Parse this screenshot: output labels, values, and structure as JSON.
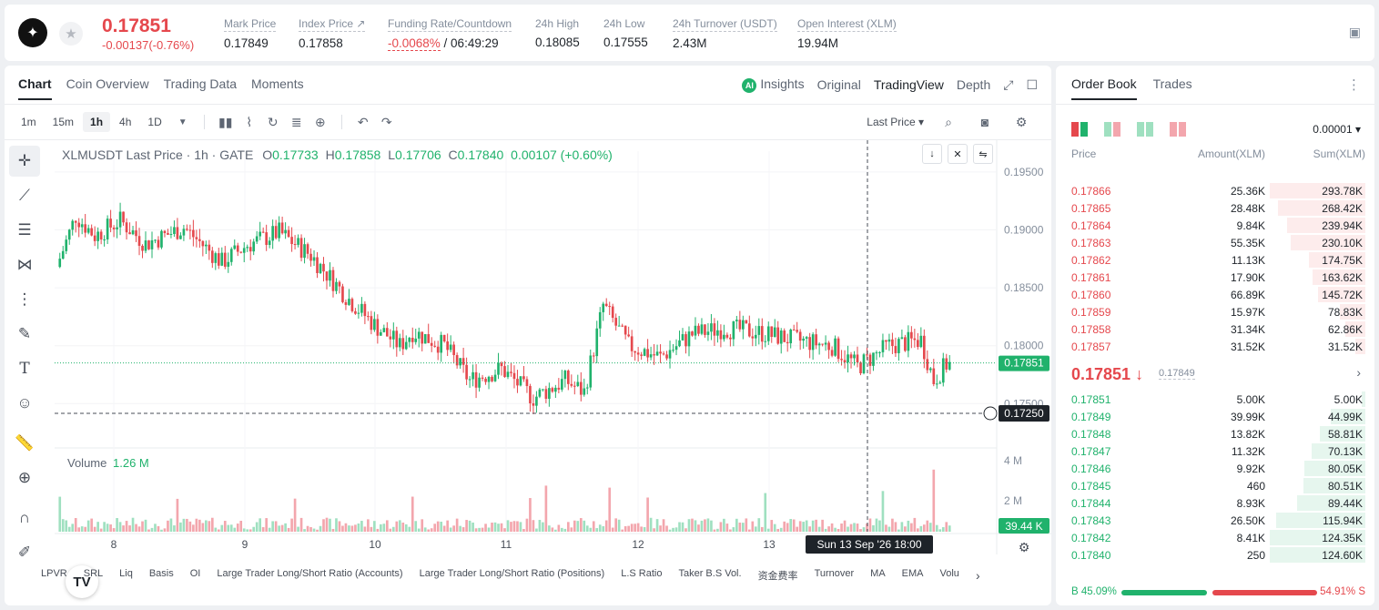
{
  "ticker": {
    "last_price": "0.17851",
    "change": "-0.00137(-0.76%)",
    "stats": [
      {
        "label": "Mark Price",
        "value": "0.17849"
      },
      {
        "label": "Index Price ↗",
        "value": "0.17858"
      },
      {
        "label": "Funding Rate/Countdown",
        "value_neg": "-0.0068%",
        "value_rest": " / 06:49:29"
      },
      {
        "label": "24h High",
        "value": "0.18085"
      },
      {
        "label": "24h Low",
        "value": "0.17555"
      },
      {
        "label": "24h Turnover (USDT)",
        "value": "2.43M"
      },
      {
        "label": "Open Interest (XLM)",
        "value": "19.94M"
      }
    ]
  },
  "chart_panel": {
    "tabs": [
      "Chart",
      "Coin Overview",
      "Trading Data",
      "Moments"
    ],
    "views": [
      "Insights",
      "Original",
      "TradingView",
      "Depth"
    ],
    "timeframes": [
      "1m",
      "15m",
      "1h",
      "4h",
      "1D"
    ],
    "price_type": "Last Price ▾",
    "legend": {
      "symbol": "XLMUSDT Last Price · 1h · GATE",
      "o": "0.17733",
      "h": "0.17858",
      "l": "0.17706",
      "c": "0.17840",
      "chg": "0.00107 (+0.60%)"
    },
    "volume_label": "Volume",
    "volume_value": "1.26 M",
    "price_ticks": [
      "0.19500",
      "0.19000",
      "0.18500",
      "0.18000",
      "0.17500"
    ],
    "volume_ticks": [
      "4 M",
      "2 M"
    ],
    "date_ticks": [
      "8",
      "9",
      "10",
      "11",
      "12",
      "13"
    ],
    "last_price_tag": "0.17851",
    "crosshair_price": "0.17250",
    "volume_tag": "39.44 K",
    "crosshair_time": "Sun 13 Sep '26   18:00",
    "indicators": [
      "LPVR",
      "SRL",
      "Liq",
      "Basis",
      "OI",
      "Large Trader Long/Short Ratio (Accounts)",
      "Large Trader Long/Short Ratio (Positions)",
      "L.S Ratio",
      "Taker B.S Vol.",
      "资金费率",
      "Turnover",
      "MA",
      "EMA",
      "Volu"
    ]
  },
  "chart_data": {
    "type": "candlestick",
    "title": "XLMUSDT Last Price · 1h · GATE",
    "interval": "1h",
    "ylim": [
      0.1718,
      0.1968
    ],
    "y_ticks": [
      0.195,
      0.19,
      0.185,
      0.18,
      0.175
    ],
    "x_ticks": [
      "8",
      "9",
      "10",
      "11",
      "12",
      "13"
    ],
    "ohlc_last": {
      "open": 0.17733,
      "high": 0.17858,
      "low": 0.17706,
      "close": 0.1784
    },
    "last_price": 0.17851,
    "volume_last": "1.26 M",
    "volume_axis": [
      "2 M",
      "4 M"
    ]
  },
  "orderbook": {
    "tabs": [
      "Order Book",
      "Trades"
    ],
    "precision": "0.00001 ▾",
    "headers": {
      "price": "Price",
      "amount": "Amount(XLM)",
      "sum": "Sum(XLM)"
    },
    "asks": [
      {
        "p": "0.17866",
        "a": "25.36K",
        "s": "293.78K",
        "d": 1.0
      },
      {
        "p": "0.17865",
        "a": "28.48K",
        "s": "268.42K",
        "d": 0.914
      },
      {
        "p": "0.17864",
        "a": "9.84K",
        "s": "239.94K",
        "d": 0.817
      },
      {
        "p": "0.17863",
        "a": "55.35K",
        "s": "230.10K",
        "d": 0.783
      },
      {
        "p": "0.17862",
        "a": "11.13K",
        "s": "174.75K",
        "d": 0.595
      },
      {
        "p": "0.17861",
        "a": "17.90K",
        "s": "163.62K",
        "d": 0.557
      },
      {
        "p": "0.17860",
        "a": "66.89K",
        "s": "145.72K",
        "d": 0.496
      },
      {
        "p": "0.17859",
        "a": "15.97K",
        "s": "78.83K",
        "d": 0.268
      },
      {
        "p": "0.17858",
        "a": "31.34K",
        "s": "62.86K",
        "d": 0.214
      },
      {
        "p": "0.17857",
        "a": "31.52K",
        "s": "31.52K",
        "d": 0.107
      }
    ],
    "mid_price": "0.17851 ↓",
    "mid_mark": "0.17849",
    "bids": [
      {
        "p": "0.17851",
        "a": "5.00K",
        "s": "5.00K",
        "d": 0.04
      },
      {
        "p": "0.17849",
        "a": "39.99K",
        "s": "44.99K",
        "d": 0.361
      },
      {
        "p": "0.17848",
        "a": "13.82K",
        "s": "58.81K",
        "d": 0.472
      },
      {
        "p": "0.17847",
        "a": "11.32K",
        "s": "70.13K",
        "d": 0.562
      },
      {
        "p": "0.17846",
        "a": "9.92K",
        "s": "80.05K",
        "d": 0.642
      },
      {
        "p": "0.17845",
        "a": "460",
        "s": "80.51K",
        "d": 0.646
      },
      {
        "p": "0.17844",
        "a": "8.93K",
        "s": "89.44K",
        "d": 0.717
      },
      {
        "p": "0.17843",
        "a": "26.50K",
        "s": "115.94K",
        "d": 0.93
      },
      {
        "p": "0.17842",
        "a": "8.41K",
        "s": "124.35K",
        "d": 0.997
      },
      {
        "p": "0.17840",
        "a": "250",
        "s": "124.60K",
        "d": 1.0
      }
    ],
    "buy_ratio": "B 45.09%",
    "sell_ratio": "54.91% S",
    "buy_fraction": 0.4509
  },
  "colors": {
    "up": "#20b26c",
    "down": "#e5484d",
    "up_vol": "#9fe0c0",
    "down_vol": "#f3a6ad"
  }
}
